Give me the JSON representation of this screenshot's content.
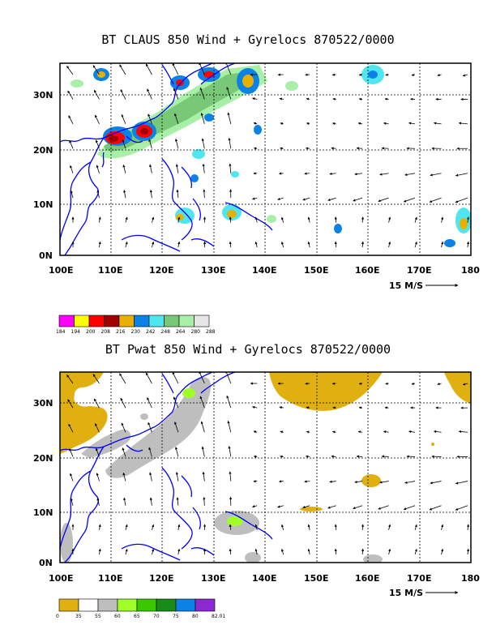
{
  "panels": [
    {
      "title": "BT CLAUS 850 Wind + Gyrelocs 870522/0000",
      "lat_ticks": [
        "30N",
        "20N",
        "10N",
        "0N"
      ],
      "lon_ticks": [
        "100E",
        "110E",
        "120E",
        "130E",
        "140E",
        "150E",
        "160E",
        "170E",
        "180"
      ],
      "reference_vector": "15 M/S",
      "colorbar": {
        "labels": [
          "184",
          "194",
          "200",
          "208",
          "216",
          "230",
          "242",
          "248",
          "264",
          "280",
          "288"
        ],
        "colors": [
          "#ff00ff",
          "#ffff00",
          "#ff0000",
          "#a00000",
          "#e8b000",
          "#0a82e6",
          "#50e6f0",
          "#78c878",
          "#a8f0a8",
          "#e6e6e6"
        ]
      }
    },
    {
      "title": "BT Pwat 850 Wind + Gyrelocs 870522/0000",
      "lat_ticks": [
        "30N",
        "20N",
        "10N",
        "0N"
      ],
      "lon_ticks": [
        "100E",
        "110E",
        "120E",
        "130E",
        "140E",
        "150E",
        "160E",
        "170E",
        "180"
      ],
      "reference_vector": "15 M/S",
      "colorbar": {
        "labels": [
          "0",
          "35",
          "55",
          "60",
          "65",
          "70",
          "75",
          "80",
          "82.01"
        ],
        "colors": [
          "#e0b010",
          "#ffffff",
          "#bebebe",
          "#a0ff28",
          "#3cc800",
          "#188c18",
          "#0a82e6",
          "#8c28d2"
        ]
      }
    }
  ]
}
